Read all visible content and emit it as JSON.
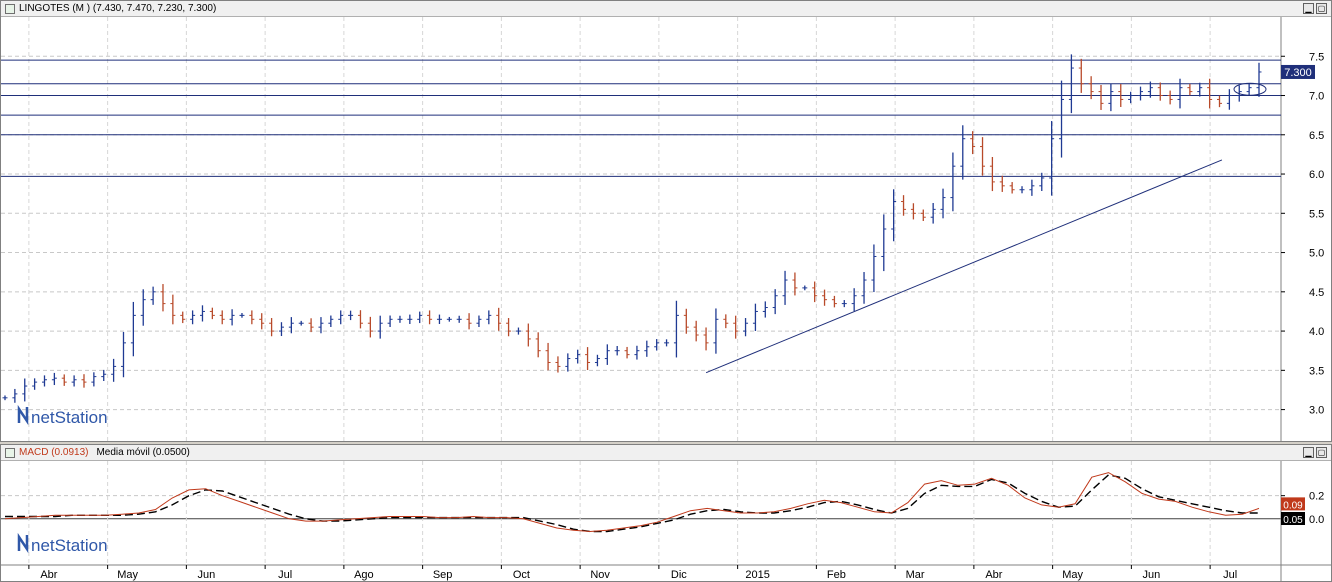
{
  "price_panel": {
    "title": "LINGOTES (M ) (7.430, 7.470, 7.230, 7.300)",
    "last_label": "7.300",
    "watermark": "netStation"
  },
  "macd_panel": {
    "title_macd": "MACD (0.0913)",
    "title_ma": "Media móvil (0.0500)",
    "macd_label": "0.09",
    "ma_label": "0.05",
    "watermark": "netStation"
  },
  "colors": {
    "up": "#1f3a93",
    "down": "#b84a2a",
    "macd": "#c0391b",
    "signal": "#000000",
    "hline": "#1f2f7a"
  },
  "chart_data": [
    {
      "type": "bar",
      "title": "LINGOTES (M ) (7.430, 7.470, 7.230, 7.300)",
      "last": {
        "open": 7.43,
        "high": 7.47,
        "low": 7.23,
        "close": 7.3
      },
      "ylim": [
        2.6,
        8.0
      ],
      "yticks": [
        3.0,
        3.5,
        4.0,
        4.5,
        5.0,
        5.5,
        6.0,
        6.5,
        7.0,
        7.5
      ],
      "x_months": [
        "Abr",
        "May",
        "Jun",
        "Jul",
        "Ago",
        "Sep",
        "Oct",
        "Nov",
        "Dic",
        "2015",
        "Feb",
        "Mar",
        "Abr",
        "May",
        "Jun",
        "Jul"
      ],
      "horizontal_lines": [
        7.45,
        7.15,
        7.0,
        6.75,
        6.5,
        5.97
      ],
      "trendline": {
        "from": {
          "month_index": 8.7,
          "value": 3.47
        },
        "to": {
          "month_index": 15.25,
          "value": 6.18
        }
      },
      "close_series": [
        3.15,
        3.2,
        3.3,
        3.35,
        3.38,
        3.4,
        3.35,
        3.38,
        3.35,
        3.42,
        3.45,
        3.55,
        3.85,
        4.2,
        4.4,
        4.5,
        4.35,
        4.2,
        4.15,
        4.2,
        4.25,
        4.2,
        4.15,
        4.2,
        4.2,
        4.15,
        4.1,
        4.0,
        4.05,
        4.1,
        4.1,
        4.05,
        4.1,
        4.15,
        4.2,
        4.2,
        4.1,
        4.0,
        4.1,
        4.15,
        4.15,
        4.15,
        4.2,
        4.15,
        4.15,
        4.15,
        4.15,
        4.1,
        4.15,
        4.2,
        4.1,
        4.0,
        4.0,
        3.9,
        3.75,
        3.6,
        3.55,
        3.65,
        3.7,
        3.6,
        3.65,
        3.75,
        3.75,
        3.7,
        3.75,
        3.8,
        3.85,
        3.85,
        4.2,
        4.05,
        3.95,
        3.85,
        4.15,
        4.1,
        4.0,
        4.1,
        4.25,
        4.3,
        4.45,
        4.65,
        4.55,
        4.55,
        4.45,
        4.4,
        4.35,
        4.35,
        4.45,
        4.65,
        4.95,
        5.3,
        5.65,
        5.55,
        5.5,
        5.45,
        5.55,
        5.7,
        6.1,
        6.45,
        6.35,
        6.1,
        5.9,
        5.85,
        5.8,
        5.8,
        5.85,
        5.95,
        6.45,
        6.95,
        7.35,
        7.15,
        7.05,
        6.9,
        7.05,
        6.95,
        7.0,
        7.05,
        7.1,
        7.0,
        6.95,
        7.1,
        7.05,
        7.1,
        6.95,
        6.9,
        7.0,
        7.05,
        7.1,
        7.3
      ]
    },
    {
      "type": "line",
      "title": "MACD (0.0913)",
      "ylim": [
        -0.4,
        0.5
      ],
      "yticks": [
        0.0,
        0.2
      ],
      "series": [
        {
          "name": "MACD (0.0913)",
          "values": [
            0.0,
            0.01,
            0.02,
            0.03,
            0.03,
            0.03,
            0.03,
            0.04,
            0.05,
            0.08,
            0.18,
            0.25,
            0.26,
            0.2,
            0.15,
            0.1,
            0.05,
            0.0,
            -0.02,
            -0.02,
            -0.01,
            0.0,
            0.01,
            0.02,
            0.02,
            0.02,
            0.01,
            0.01,
            0.02,
            0.01,
            0.01,
            0.0,
            -0.04,
            -0.08,
            -0.1,
            -0.11,
            -0.1,
            -0.08,
            -0.06,
            -0.03,
            0.02,
            0.07,
            0.09,
            0.07,
            0.05,
            0.05,
            0.06,
            0.09,
            0.13,
            0.16,
            0.14,
            0.1,
            0.06,
            0.05,
            0.14,
            0.3,
            0.33,
            0.29,
            0.3,
            0.35,
            0.29,
            0.18,
            0.12,
            0.1,
            0.13,
            0.36,
            0.4,
            0.32,
            0.22,
            0.17,
            0.15,
            0.1,
            0.06,
            0.03,
            0.04,
            0.09
          ]
        },
        {
          "name": "Media móvil (0.0500)",
          "values": [
            0.02,
            0.02,
            0.02,
            0.02,
            0.03,
            0.03,
            0.03,
            0.03,
            0.04,
            0.06,
            0.12,
            0.2,
            0.25,
            0.24,
            0.19,
            0.14,
            0.09,
            0.04,
            0.0,
            -0.02,
            -0.02,
            -0.01,
            0.0,
            0.01,
            0.01,
            0.01,
            0.01,
            0.01,
            0.01,
            0.01,
            0.01,
            0.01,
            -0.02,
            -0.05,
            -0.09,
            -0.11,
            -0.11,
            -0.09,
            -0.07,
            -0.04,
            -0.01,
            0.04,
            0.07,
            0.08,
            0.06,
            0.05,
            0.05,
            0.07,
            0.1,
            0.14,
            0.15,
            0.12,
            0.08,
            0.05,
            0.09,
            0.22,
            0.29,
            0.28,
            0.28,
            0.34,
            0.31,
            0.22,
            0.15,
            0.1,
            0.11,
            0.25,
            0.38,
            0.35,
            0.26,
            0.19,
            0.16,
            0.13,
            0.1,
            0.07,
            0.05,
            0.05
          ]
        }
      ]
    }
  ]
}
